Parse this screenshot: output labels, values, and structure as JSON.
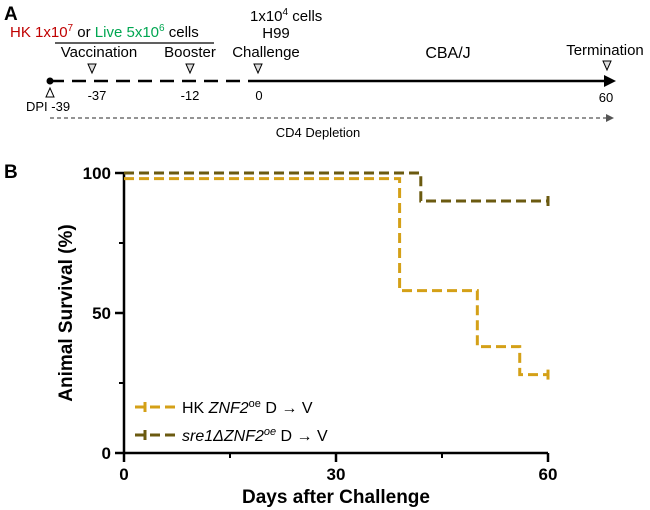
{
  "panel_a": {
    "label": "A",
    "hk_prefix": "HK 1x10",
    "hk_exp": "7",
    "or_text": "or",
    "live_prefix": "Live 5x10",
    "live_exp": "6",
    "cells_text": "cells",
    "challenge_dose_prefix": "1x10",
    "challenge_dose_exp": "4",
    "challenge_dose_suffix": "cells",
    "strain": "H99",
    "events": {
      "vaccination": "Vaccination",
      "booster": "Booster",
      "challenge": "Challenge",
      "termination": "Termination"
    },
    "mouse_strain": "CBA/J",
    "dpi_label": "DPI -39",
    "day_labels": {
      "vaccination": "-37",
      "booster": "-12",
      "challenge": "0",
      "termination": "60"
    },
    "cd4_label": "CD4 Depletion",
    "colors": {
      "hk": "#c00000",
      "live": "#00a651"
    }
  },
  "panel_b": {
    "label": "B"
  },
  "chart_data": {
    "type": "line",
    "title": "",
    "xlabel": "Days after Challenge",
    "ylabel": "Animal Survival (%)",
    "xlim": [
      0,
      60
    ],
    "ylim": [
      0,
      100
    ],
    "xticks": [
      0,
      30,
      60
    ],
    "yticks": [
      0,
      50,
      100
    ],
    "series": [
      {
        "name": "HK ZNF2oe D → V",
        "label_prefix": "HK ",
        "label_italic": "ZNF2",
        "label_sup": "oe",
        "label_suffix": " D → V",
        "color": "#d4a017",
        "style": "step-dashed",
        "x": [
          0,
          39,
          39,
          50,
          50,
          56,
          56,
          60
        ],
        "y": [
          98,
          98,
          58,
          58,
          38,
          38,
          28,
          28
        ]
      },
      {
        "name": "sre1ΔZNF2oe D → V",
        "label_prefix": "",
        "label_italic": "sre1ΔZNF2",
        "label_sup": "oe",
        "label_suffix": " D → V",
        "color": "#6b5a10",
        "style": "step-dashed",
        "x": [
          0,
          42,
          42,
          60
        ],
        "y": [
          100,
          100,
          90,
          90
        ]
      }
    ]
  }
}
